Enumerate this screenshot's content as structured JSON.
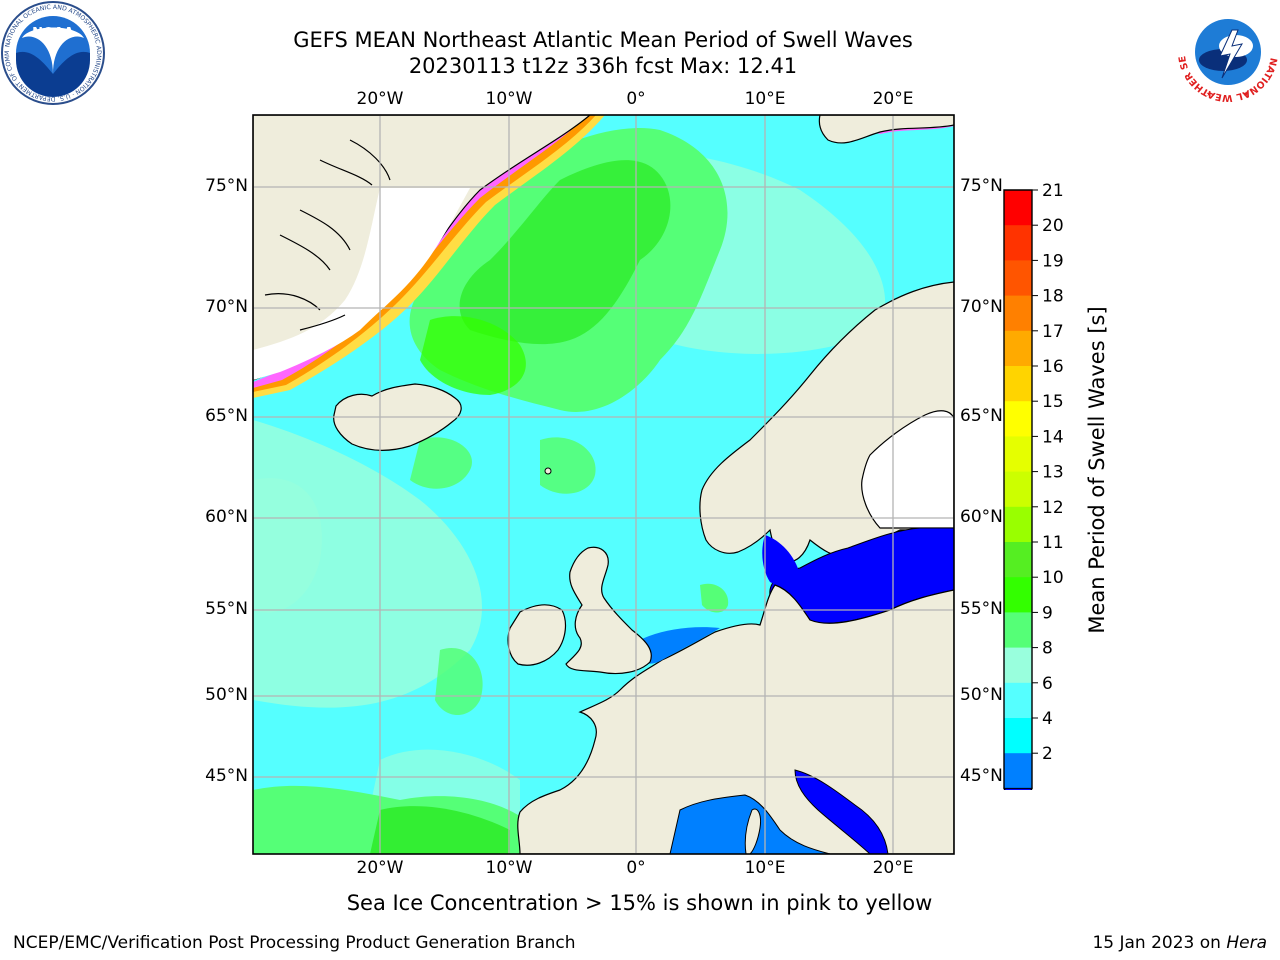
{
  "title": {
    "line1": "GEFS MEAN Northeast Atlantic Mean Period of Swell Waves",
    "line2": "20230113 t12z 336h fcst   Max: 12.41"
  },
  "logos": {
    "noaa_icon": "noaa-logo",
    "noaa_text": "NATIONAL OCEANIC AND ATMOSPHERIC ADMINISTRATION · U.S. DEPARTMENT OF COMMERCE",
    "noaa_badge": "NOAA",
    "nws_icon": "nws-logo",
    "nws_text": "NATIONAL WEATHER SERVICE"
  },
  "map": {
    "lat_labels": [
      "75°N",
      "70°N",
      "65°N",
      "60°N",
      "55°N",
      "50°N",
      "45°N"
    ],
    "lon_labels": [
      "20°W",
      "10°W",
      "0°",
      "10°E",
      "20°E"
    ],
    "colors": {
      "land": "#efeddc",
      "ocean_base": "#55ffff",
      "ice_pink": "#ff66ff",
      "ice_orange": "#ff9900",
      "ice_yellow": "#ffdd44",
      "grid": "#b4b4b4",
      "coast": "#000000"
    }
  },
  "colorbar": {
    "title": "Mean Period of Swell Waves [s]",
    "ticks": [
      "21",
      "20",
      "19",
      "18",
      "17",
      "16",
      "15",
      "14",
      "13",
      "12",
      "11",
      "10",
      "9",
      "8",
      "6",
      "4",
      "2"
    ],
    "bands": [
      {
        "color": "#ff0000"
      },
      {
        "color": "#ff3300"
      },
      {
        "color": "#ff5500"
      },
      {
        "color": "#ff8000"
      },
      {
        "color": "#ffaa00"
      },
      {
        "color": "#ffd400"
      },
      {
        "color": "#ffff00"
      },
      {
        "color": "#e5ff00"
      },
      {
        "color": "#ccff00"
      },
      {
        "color": "#99ff00"
      },
      {
        "color": "#55ee22"
      },
      {
        "color": "#33ff00"
      },
      {
        "color": "#55ff77"
      },
      {
        "color": "#99ffdd"
      },
      {
        "color": "#55ffff"
      },
      {
        "color": "#00ffff"
      },
      {
        "color": "#0080ff"
      }
    ],
    "extend_color": "#0000ff"
  },
  "footer": {
    "note": "Sea Ice Concentration > 15% is shown in pink to yellow",
    "credit_left": "NCEP/EMC/Verification Post Processing Product Generation Branch",
    "credit_right_date": "15 Jan 2023 on ",
    "credit_right_host": "Hera"
  }
}
